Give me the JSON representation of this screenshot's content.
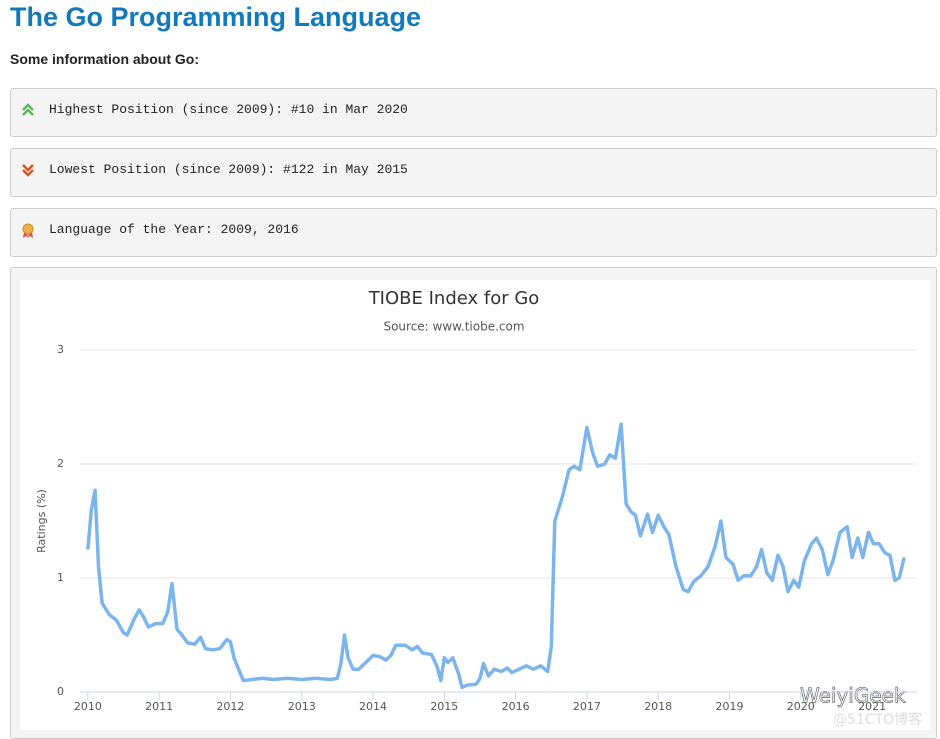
{
  "header": {
    "title": "The Go Programming Language",
    "subtitle": "Some information about Go:"
  },
  "info": {
    "items": [
      {
        "text": "Highest Position (since 2009): #10 in Mar 2020"
      },
      {
        "text": "Lowest Position (since 2009): #122 in May 2015"
      },
      {
        "text": "Language of the Year: 2009, 2016"
      }
    ]
  },
  "watermark": {
    "name": "WeiyiGeek",
    "site": "@51CTO博客"
  },
  "chart_data": {
    "type": "line",
    "title": "TIOBE Index for Go",
    "subtitle": "Source: www.tiobe.com",
    "y_label": "Ratings (%)",
    "color": "#7cb5ec",
    "grid": true,
    "xlim": [
      2009.89,
      2021.63
    ],
    "xticks": [
      2010,
      2011,
      2012,
      2013,
      2014,
      2015,
      2016,
      2017,
      2018,
      2019,
      2020,
      2021
    ],
    "ylim": [
      0,
      3
    ],
    "yticks": [
      0,
      1,
      2,
      3
    ],
    "x": [
      2010.0,
      2010.05,
      2010.1,
      2010.15,
      2010.2,
      2010.3,
      2010.4,
      2010.5,
      2010.55,
      2010.65,
      2010.72,
      2010.78,
      2010.85,
      2010.95,
      2011.05,
      2011.12,
      2011.18,
      2011.25,
      2011.32,
      2011.4,
      2011.5,
      2011.58,
      2011.65,
      2011.75,
      2011.85,
      2011.95,
      2012.0,
      2012.05,
      2012.1,
      2012.18,
      2012.3,
      2012.45,
      2012.6,
      2012.8,
      2013.0,
      2013.2,
      2013.4,
      2013.5,
      2013.55,
      2013.6,
      2013.65,
      2013.72,
      2013.8,
      2013.9,
      2014.0,
      2014.1,
      2014.18,
      2014.25,
      2014.32,
      2014.45,
      2014.55,
      2014.62,
      2014.7,
      2014.82,
      2014.9,
      2014.95,
      2015.0,
      2015.05,
      2015.12,
      2015.2,
      2015.25,
      2015.32,
      2015.45,
      2015.5,
      2015.55,
      2015.62,
      2015.7,
      2015.8,
      2015.88,
      2015.95,
      2016.05,
      2016.15,
      2016.25,
      2016.35,
      2016.45,
      2016.5,
      2016.55,
      2016.65,
      2016.75,
      2016.82,
      2016.9,
      2017.0,
      2017.08,
      2017.15,
      2017.25,
      2017.32,
      2017.4,
      2017.48,
      2017.55,
      2017.62,
      2017.68,
      2017.75,
      2017.85,
      2017.92,
      2018.0,
      2018.08,
      2018.15,
      2018.25,
      2018.35,
      2018.42,
      2018.5,
      2018.6,
      2018.7,
      2018.8,
      2018.88,
      2018.95,
      2019.05,
      2019.12,
      2019.2,
      2019.3,
      2019.38,
      2019.45,
      2019.52,
      2019.6,
      2019.68,
      2019.75,
      2019.82,
      2019.9,
      2019.97,
      2020.05,
      2020.15,
      2020.22,
      2020.3,
      2020.38,
      2020.45,
      2020.55,
      2020.65,
      2020.72,
      2020.8,
      2020.87,
      2020.95,
      2021.02,
      2021.1,
      2021.18,
      2021.25,
      2021.32,
      2021.38,
      2021.45
    ],
    "values": [
      1.25,
      1.6,
      1.77,
      1.1,
      0.78,
      0.68,
      0.63,
      0.52,
      0.5,
      0.64,
      0.72,
      0.66,
      0.57,
      0.6,
      0.6,
      0.7,
      0.95,
      0.55,
      0.5,
      0.43,
      0.42,
      0.48,
      0.38,
      0.37,
      0.38,
      0.46,
      0.44,
      0.3,
      0.22,
      0.1,
      0.11,
      0.12,
      0.11,
      0.12,
      0.11,
      0.12,
      0.11,
      0.12,
      0.25,
      0.5,
      0.3,
      0.2,
      0.2,
      0.26,
      0.32,
      0.31,
      0.28,
      0.32,
      0.41,
      0.41,
      0.37,
      0.4,
      0.34,
      0.33,
      0.22,
      0.1,
      0.3,
      0.26,
      0.3,
      0.16,
      0.04,
      0.06,
      0.07,
      0.12,
      0.25,
      0.14,
      0.2,
      0.18,
      0.21,
      0.17,
      0.2,
      0.23,
      0.2,
      0.23,
      0.18,
      0.4,
      1.5,
      1.7,
      1.95,
      1.98,
      1.95,
      2.32,
      2.1,
      1.98,
      2.0,
      2.08,
      2.05,
      2.35,
      1.65,
      1.58,
      1.55,
      1.37,
      1.56,
      1.4,
      1.55,
      1.45,
      1.38,
      1.1,
      0.9,
      0.88,
      0.97,
      1.02,
      1.1,
      1.28,
      1.5,
      1.18,
      1.12,
      0.98,
      1.02,
      1.02,
      1.1,
      1.25,
      1.05,
      0.98,
      1.2,
      1.1,
      0.88,
      0.98,
      0.92,
      1.15,
      1.3,
      1.35,
      1.25,
      1.03,
      1.15,
      1.4,
      1.45,
      1.18,
      1.35,
      1.18,
      1.4,
      1.3,
      1.3,
      1.22,
      1.2,
      0.98,
      1.0,
      1.18
    ]
  }
}
